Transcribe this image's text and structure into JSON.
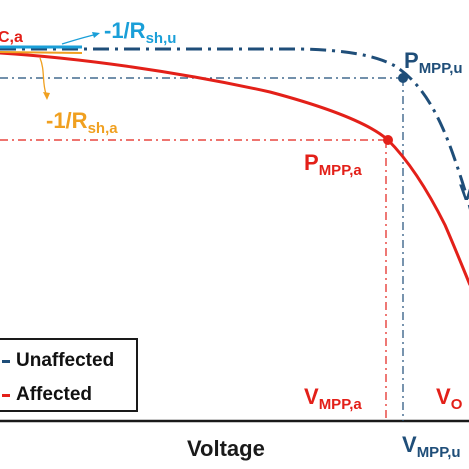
{
  "chart_data": {
    "type": "line",
    "title": "",
    "xlabel": "Voltage",
    "ylabel": "",
    "grid": false,
    "legend_placement": "bottom-left",
    "series": [
      {
        "name": "Unaffected",
        "line_style": "dash-dot",
        "color": "#1f4e79",
        "mpp_label": {
          "main": "P",
          "sub": "MPP,u"
        },
        "voc_label_visible": "V"
      },
      {
        "name": "Affected",
        "line_style": "solid",
        "color": "#e32019",
        "mpp_label": {
          "main": "P",
          "sub": "MPP,a"
        },
        "vmpp_label": {
          "main": "V",
          "sub": "MPP,a"
        },
        "voc_label": {
          "main": "V",
          "sub": "O"
        }
      }
    ],
    "annotations": {
      "isc_label": {
        "main": "",
        "sub": "C,a",
        "color": "#e32019"
      },
      "rsh_unaffected": {
        "main": "-1/R",
        "sub": "sh,u",
        "color": "#1a9fd8"
      },
      "rsh_affected": {
        "main": "-1/R",
        "sub": "sh,a",
        "color": "#f0a020"
      },
      "vmpp_unaffected": {
        "main": "V",
        "sub": "MPP,u",
        "color": "#1f4e79"
      }
    }
  }
}
